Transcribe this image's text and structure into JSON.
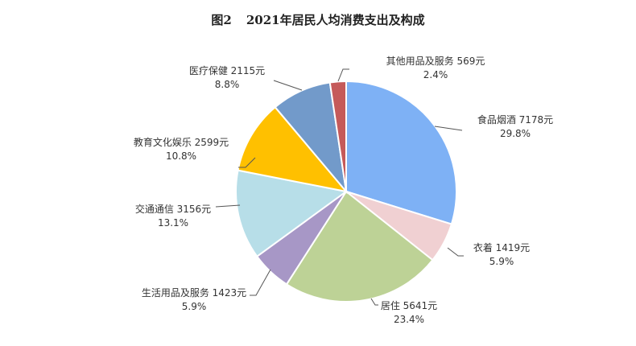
{
  "chart_data": {
    "type": "pie",
    "title": "图2    2021年居民人均消费支出及构成",
    "figure_label": "图2",
    "title_text": "2021年居民人均消费支出及构成",
    "unit": "元",
    "slices": [
      {
        "name": "食品烟酒",
        "value": 7178,
        "percent": 29.8,
        "color": "#7EB1F5",
        "label": "食品烟酒 7178元",
        "pct_label": "29.8%"
      },
      {
        "name": "衣着",
        "value": 1419,
        "percent": 5.9,
        "color": "#F0D0D2",
        "label": "衣着 1419元",
        "pct_label": "5.9%"
      },
      {
        "name": "居住",
        "value": 5641,
        "percent": 23.4,
        "color": "#BDD296",
        "label": "居住 5641元",
        "pct_label": "23.4%"
      },
      {
        "name": "生活用品及服务",
        "value": 1423,
        "percent": 5.9,
        "color": "#A797C6",
        "label": "生活用品及服务 1423元",
        "pct_label": "5.9%"
      },
      {
        "name": "交通通信",
        "value": 3156,
        "percent": 13.1,
        "color": "#B7DEE8",
        "label": "交通通信 3156元",
        "pct_label": "13.1%"
      },
      {
        "name": "教育文化娱乐",
        "value": 2599,
        "percent": 10.8,
        "color": "#FFC000",
        "label": "教育文化娱乐 2599元",
        "pct_label": "10.8%"
      },
      {
        "name": "医疗保健",
        "value": 2115,
        "percent": 8.8,
        "color": "#729ACA",
        "label": "医疗保健 2115元",
        "pct_label": "8.8%"
      },
      {
        "name": "其他用品及服务",
        "value": 569,
        "percent": 2.4,
        "color": "#C55A5A",
        "label": "其他用品及服务 569元",
        "pct_label": "2.4%"
      }
    ],
    "start_angle": "12 o'clock, clockwise",
    "legend": "none (data labels with leader lines)"
  }
}
